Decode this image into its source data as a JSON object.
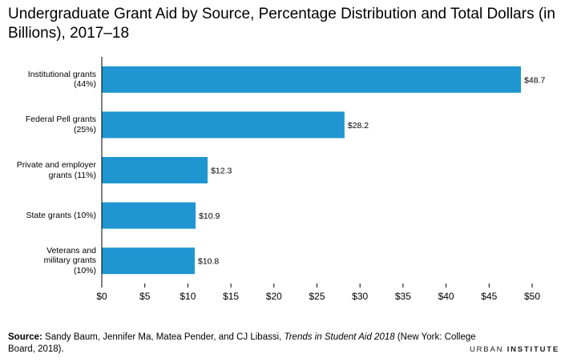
{
  "title": "Undergraduate Grant Aid by Source, Percentage Distribution and Total Dollars (in Billions), 2017–18",
  "source": {
    "label": "Source:",
    "text_before": " Sandy Baum, Jennifer Ma, Matea Pender, and CJ Libassi, ",
    "italic": "Trends in Student Aid 2018",
    "text_after": " (New York: College Board, 2018)."
  },
  "logo": {
    "word1": "URBAN",
    "word2": "INSTITUTE"
  },
  "colors": {
    "bar": "#1f96d0",
    "axis": "#000000",
    "grid": "#dddddd"
  },
  "chart_data": {
    "type": "bar",
    "orientation": "horizontal",
    "categories": [
      "Institutional grants\n(44%)",
      "Federal Pell grants\n(25%)",
      "Private and employer\ngrants (11%)",
      "State grants (10%)",
      "Veterans and\nmilitary grants\n(10%)"
    ],
    "values": [
      48.7,
      28.2,
      12.3,
      10.9,
      10.8
    ],
    "data_labels": [
      "$48.7",
      "$28.2",
      "$12.3",
      "$10.9",
      "$10.8"
    ],
    "xlim": [
      0,
      50
    ],
    "xticks": [
      0,
      5,
      10,
      15,
      20,
      25,
      30,
      35,
      40,
      45,
      50
    ],
    "xtick_labels": [
      "$0",
      "$5",
      "$10",
      "$15",
      "$20",
      "$25",
      "$30",
      "$35",
      "$40",
      "$45",
      "$50"
    ],
    "grid": false,
    "xlabel": "",
    "ylabel": ""
  }
}
